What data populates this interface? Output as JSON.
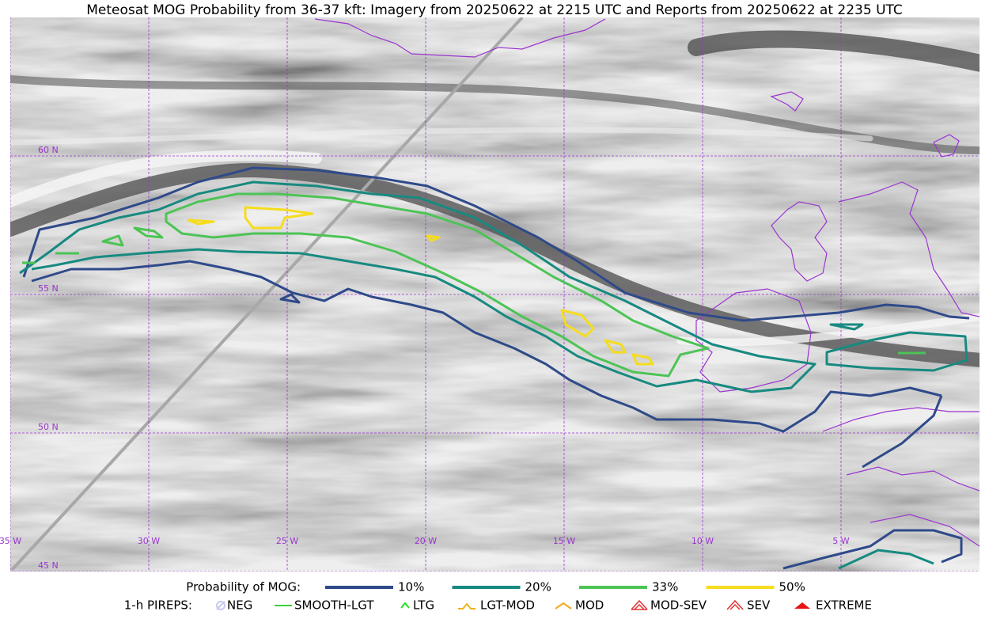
{
  "title": "Meteosat MOG Probability from 36-37 kft: Imagery from 20250622 at 2215 UTC and Reports from 20250622 at 2235 UTC",
  "lat_labels": [
    "60 N",
    "55 N",
    "50 N",
    "45 N"
  ],
  "lon_labels": [
    "35 W",
    "30 W",
    "25 W",
    "20 W",
    "15 W",
    "10 W",
    "5 W"
  ],
  "legend": {
    "probability": {
      "label": "Probability of MOG:",
      "items": [
        {
          "label": "10%",
          "color": "#2f4a8a"
        },
        {
          "label": "20%",
          "color": "#178a80"
        },
        {
          "label": "33%",
          "color": "#4cc455"
        },
        {
          "label": "50%",
          "color": "#f5dc1e"
        }
      ]
    },
    "pireps": {
      "label": "1-h PIREPS:",
      "items": [
        {
          "label": "NEG",
          "color": "#c8c8f0"
        },
        {
          "label": "SMOOTH-LGT",
          "color": "#3cd23c"
        },
        {
          "label": "LTG",
          "color": "#1ee61e"
        },
        {
          "label": "LGT-MOD",
          "color": "#f0b41e"
        },
        {
          "label": "MOD",
          "color": "#f0aa1e"
        },
        {
          "label": "MOD-SEV",
          "color": "#e63232"
        },
        {
          "label": "SEV",
          "color": "#e63232"
        },
        {
          "label": "EXTREME",
          "color": "#e61414"
        }
      ]
    }
  }
}
